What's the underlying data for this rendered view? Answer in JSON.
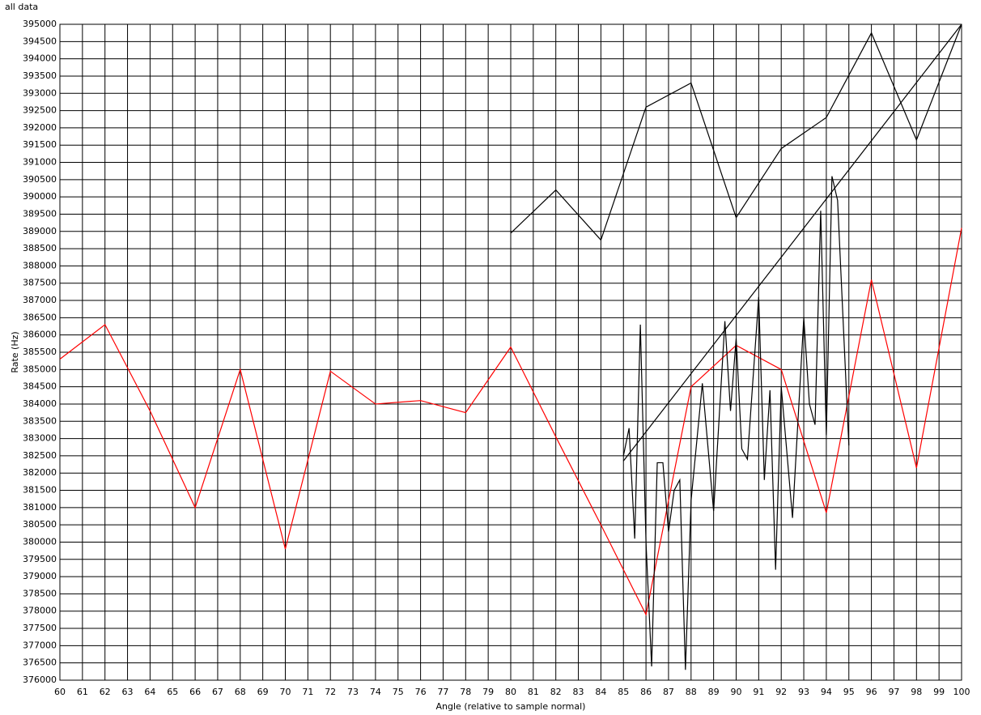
{
  "chart_data": {
    "type": "line",
    "title": "all data",
    "x_label": "Angle (relative to sample normal)",
    "y_label": "Rate (Hz)",
    "xlim": [
      60,
      100
    ],
    "ylim": [
      376000,
      395000
    ],
    "grid": true,
    "xticks": [
      60,
      61,
      62,
      63,
      64,
      65,
      66,
      67,
      68,
      69,
      70,
      71,
      72,
      73,
      74,
      75,
      76,
      77,
      78,
      79,
      80,
      81,
      82,
      83,
      84,
      85,
      86,
      87,
      88,
      89,
      90,
      91,
      92,
      93,
      94,
      95,
      96,
      97,
      98,
      99,
      100
    ],
    "yticks": [
      376000,
      376500,
      377000,
      377500,
      378000,
      378500,
      379000,
      379500,
      380000,
      380500,
      381000,
      381500,
      382000,
      382500,
      383000,
      383500,
      384000,
      384500,
      385000,
      385500,
      386000,
      386500,
      387000,
      387500,
      388000,
      388500,
      389000,
      389500,
      390000,
      390500,
      391000,
      391500,
      392000,
      392500,
      393000,
      393500,
      394000,
      394500,
      395000
    ],
    "series": [
      {
        "color": "#ff0000",
        "x": [
          60,
          62,
          64,
          66,
          68,
          70,
          72,
          74,
          76,
          78,
          80,
          82,
          84,
          86,
          88,
          90,
          92,
          94,
          96,
          98,
          100
        ],
        "values": [
          385300,
          386300,
          383800,
          381000,
          385000,
          379800,
          384950,
          384000,
          384100,
          383750,
          385650,
          383050,
          380500,
          377900,
          384500,
          385700,
          385000,
          380850,
          387600,
          382150,
          389100
        ]
      },
      {
        "color": "#000000",
        "x": [
          80,
          82,
          84,
          86,
          88,
          90,
          92,
          94,
          96,
          98,
          100
        ],
        "values": [
          388950,
          390200,
          388750,
          392600,
          393300,
          389400,
          391400,
          392300,
          394750,
          391650,
          395000
        ]
      },
      {
        "color": "#000000",
        "x": [
          85,
          100
        ],
        "values": [
          382350,
          395000
        ]
      },
      {
        "color": "#000000",
        "x": [
          85,
          85.25,
          85.5,
          85.75,
          86,
          86.25,
          86.5,
          86.75,
          87,
          87.25,
          87.5,
          87.75,
          88,
          88.5,
          89,
          89.5,
          89.75,
          90,
          90.25,
          90.5,
          91,
          91.25,
          91.5,
          91.75,
          92,
          92.5,
          93,
          93.25,
          93.5,
          93.75,
          94,
          94.25,
          94.5,
          95
        ],
        "values": [
          382500,
          383300,
          380100,
          386300,
          380000,
          376400,
          382300,
          382300,
          380300,
          381500,
          381800,
          376300,
          381200,
          384600,
          380900,
          386400,
          383800,
          385900,
          382700,
          382400,
          387100,
          381800,
          384400,
          379200,
          384500,
          380700,
          386500,
          384000,
          383400,
          389600,
          383100,
          390600,
          389900,
          382800
        ]
      }
    ]
  }
}
